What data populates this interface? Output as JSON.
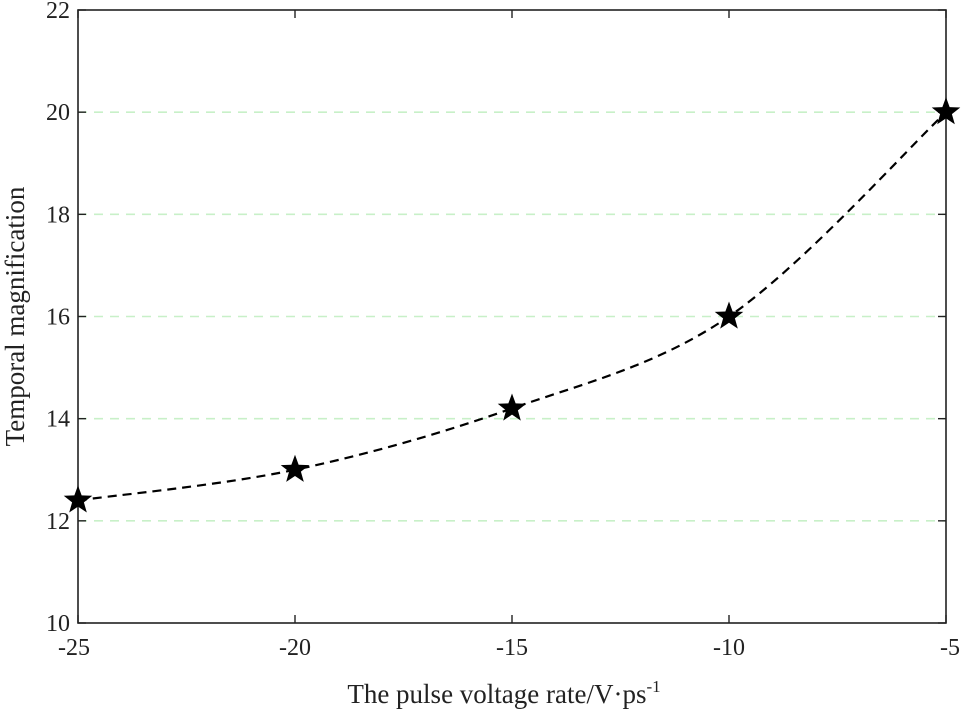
{
  "chart_data": {
    "type": "line",
    "title": "",
    "xlabel": "The pulse voltage rate/V·ps",
    "xlabel_superscript": "-1",
    "ylabel": "Temporal magnification",
    "xlim": [
      -25,
      -5
    ],
    "ylim": [
      10,
      22
    ],
    "xticks": [
      -25,
      -20,
      -15,
      -10,
      -5
    ],
    "xtick_labels": [
      "-25",
      "-20",
      "-15",
      "-10",
      "-5"
    ],
    "yticks": [
      10,
      12,
      14,
      16,
      18,
      20,
      22
    ],
    "ytick_labels": [
      "10",
      "12",
      "14",
      "16",
      "18",
      "20",
      "22"
    ],
    "grid": "horizontal dashed",
    "grid_color": "#c8f0c8",
    "series": [
      {
        "name": "Temporal magnification",
        "marker": "star",
        "line_style": "dashed",
        "color": "#000000",
        "x": [
          -25,
          -20,
          -15,
          -10,
          -5
        ],
        "y": [
          12.4,
          13.0,
          14.2,
          16.0,
          20.0
        ]
      }
    ]
  }
}
